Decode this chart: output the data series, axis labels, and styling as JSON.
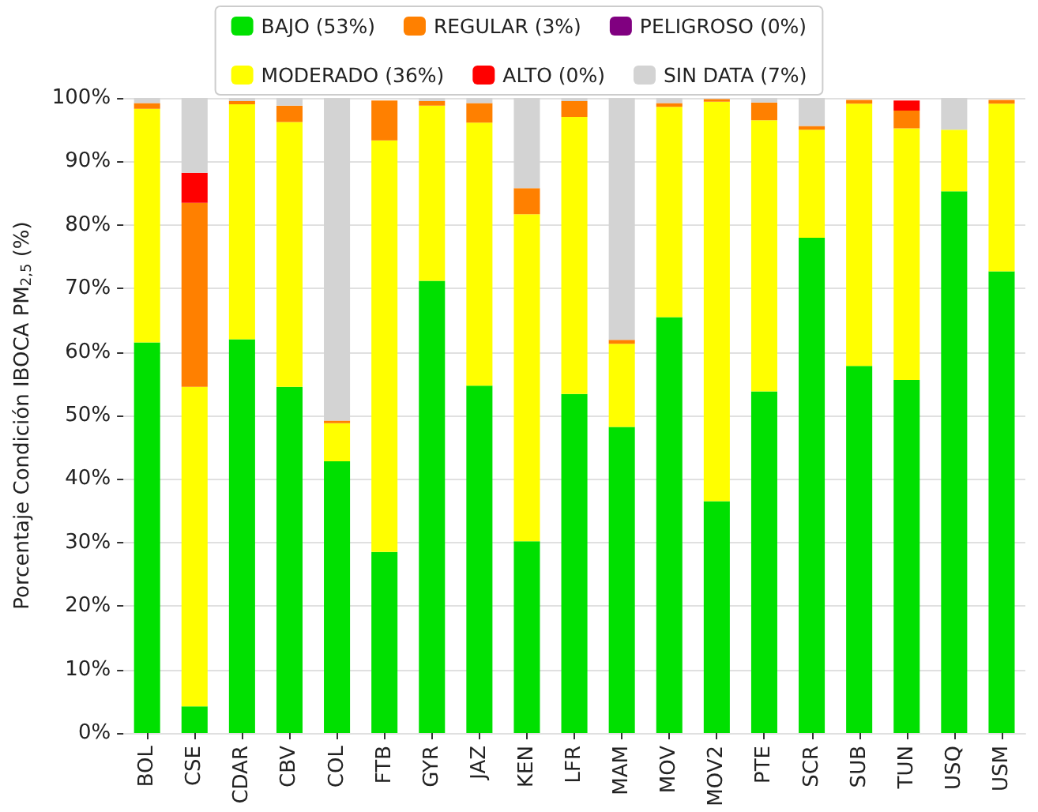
{
  "chart_data": {
    "type": "bar",
    "stacked": true,
    "ylabel": "Porcentaje Condición IBOCA PM$_{2,5}$ (%)",
    "categories": [
      "BOL",
      "CSE",
      "CDAR",
      "CBV",
      "COL",
      "FTB",
      "GYR",
      "JAZ",
      "KEN",
      "LFR",
      "MAM",
      "MOV",
      "MOV2",
      "PTE",
      "SCR",
      "SUB",
      "TUN",
      "USQ",
      "USM"
    ],
    "series": [
      {
        "name": "BAJO (53%)",
        "color": "#00e000",
        "values": [
          61.5,
          4.2,
          62,
          54.5,
          42.8,
          28.5,
          71.2,
          54.7,
          30.2,
          53.4,
          48.2,
          65.5,
          36.5,
          53.8,
          78,
          57.8,
          55.6,
          85.3,
          72.7
        ]
      },
      {
        "name": "MODERADO (36%)",
        "color": "#ffff00",
        "values": [
          36.8,
          50.3,
          37,
          41.7,
          6,
          64.8,
          27.6,
          41.4,
          51.5,
          43.6,
          13.1,
          33.1,
          62.9,
          42.7,
          17,
          41.3,
          39.6,
          9.7,
          26.4
        ]
      },
      {
        "name": "REGULAR (3%)",
        "color": "#ff8000",
        "values": [
          0.9,
          29,
          0.5,
          2.6,
          0.4,
          6.3,
          0.7,
          3.1,
          4.1,
          2.5,
          0.6,
          0.6,
          0.4,
          2.8,
          0.6,
          0.6,
          2.8,
          0,
          0.6
        ]
      },
      {
        "name": "ALTO (0%)",
        "color": "#ff0000",
        "values": [
          0,
          4.7,
          0,
          0,
          0,
          0,
          0,
          0,
          0,
          0,
          0,
          0,
          0,
          0,
          0,
          0,
          1.6,
          0,
          0
        ]
      },
      {
        "name": "PELIGROSO (0%)",
        "color": "#800080",
        "values": [
          0,
          0,
          0,
          0,
          0,
          0,
          0,
          0,
          0,
          0,
          0,
          0,
          0,
          0,
          0,
          0,
          0,
          0,
          0
        ]
      },
      {
        "name": "SIN DATA (7%)",
        "color": "#d3d3d3",
        "values": [
          0.8,
          11.8,
          0.5,
          1.2,
          50.8,
          null,
          0.5,
          0.8,
          14.2,
          0.5,
          38.1,
          0.8,
          null,
          0.7,
          4.4,
          null,
          0,
          5,
          null
        ]
      }
    ],
    "ylim": [
      0,
      100
    ],
    "yticks": [
      {
        "value": 0,
        "label": "0%"
      },
      {
        "value": 10,
        "label": "10%"
      },
      {
        "value": 20,
        "label": "20%"
      },
      {
        "value": 30,
        "label": "30%"
      },
      {
        "value": 40,
        "label": "40%"
      },
      {
        "value": 50,
        "label": "50%"
      },
      {
        "value": 60,
        "label": "60%"
      },
      {
        "value": 70,
        "label": "70%"
      },
      {
        "value": 80,
        "label": "80%"
      },
      {
        "value": 90,
        "label": "90%"
      },
      {
        "value": 100,
        "label": "100%"
      }
    ],
    "grid": "y",
    "legend": "top"
  }
}
